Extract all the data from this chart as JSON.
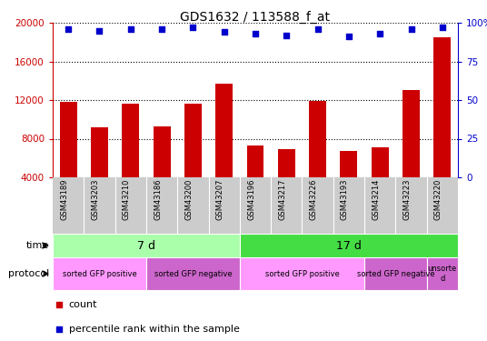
{
  "title": "GDS1632 / 113588_f_at",
  "samples": [
    "GSM43189",
    "GSM43203",
    "GSM43210",
    "GSM43186",
    "GSM43200",
    "GSM43207",
    "GSM43196",
    "GSM43217",
    "GSM43226",
    "GSM43193",
    "GSM43214",
    "GSM43223",
    "GSM43220"
  ],
  "counts": [
    11800,
    9200,
    11600,
    9300,
    11600,
    13700,
    7300,
    6900,
    11900,
    6700,
    7100,
    13000,
    18500
  ],
  "percentile_ranks": [
    96,
    95,
    96,
    96,
    97,
    94,
    93,
    92,
    96,
    91,
    93,
    96,
    97
  ],
  "bar_color": "#cc0000",
  "dot_color": "#0000cc",
  "ylim_left": [
    4000,
    20000
  ],
  "yticks_left": [
    4000,
    8000,
    12000,
    16000,
    20000
  ],
  "ylim_right": [
    0,
    100
  ],
  "yticks_right": [
    0,
    25,
    50,
    75,
    100
  ],
  "time_groups": [
    {
      "label": "7 d",
      "start": 0,
      "end": 5,
      "color": "#aaffaa"
    },
    {
      "label": "17 d",
      "start": 6,
      "end": 12,
      "color": "#44dd44"
    }
  ],
  "protocol_groups": [
    {
      "label": "sorted GFP positive",
      "start": 0,
      "end": 2,
      "color": "#ff99ff"
    },
    {
      "label": "sorted GFP negative",
      "start": 3,
      "end": 5,
      "color": "#cc66cc"
    },
    {
      "label": "sorted GFP positive",
      "start": 6,
      "end": 9,
      "color": "#ff99ff"
    },
    {
      "label": "sorted GFP negative",
      "start": 10,
      "end": 11,
      "color": "#cc66cc"
    },
    {
      "label": "unsorte\nd",
      "start": 12,
      "end": 12,
      "color": "#cc66cc"
    }
  ],
  "bg_color": "#ffffff",
  "sample_bg_color": "#cccccc",
  "left_axis_color": "#cc0000",
  "right_axis_color": "#0000cc"
}
